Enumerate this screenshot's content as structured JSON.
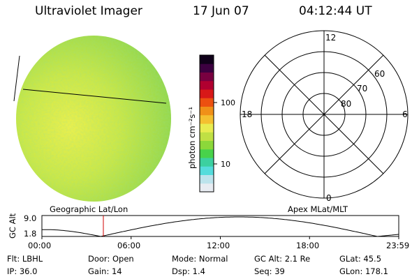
{
  "header": {
    "instrument": "Ultraviolet Imager",
    "date": "17 Jun 07",
    "time": "04:12:44 UT"
  },
  "colorbar": {
    "unit_label": "photon cm⁻²s⁻¹",
    "tick_100": "100",
    "tick_10": "10",
    "colors": [
      "#e8ecf2",
      "#bde3ec",
      "#55dcdc",
      "#3cd0a0",
      "#48d24a",
      "#8cd83a",
      "#c0e044",
      "#e8ec50",
      "#f4c030",
      "#f09018",
      "#ec5010",
      "#d81818",
      "#b00030",
      "#780040",
      "#3c0040",
      "#10001a"
    ]
  },
  "polar_plot": {
    "mlt_12": "12",
    "mlt_18": "18",
    "mlt_6": "6",
    "mlt_0": "0",
    "lat_60": "60",
    "lat_70": "70",
    "lat_80": "80"
  },
  "section_labels": {
    "geo": "Geographic Lat/Lon",
    "apex": "Apex MLat/MLT"
  },
  "altitude_plot": {
    "ylabel": "GC Alt",
    "ytick_top": "9.0",
    "ytick_bottom": "1.8",
    "xticks": [
      "00:00",
      "06:00",
      "12:00",
      "18:00",
      "23:59"
    ]
  },
  "info": {
    "flt": "Flt: LBHL",
    "ip": "IP: 36.0",
    "door": "Door: Open",
    "gain": "Gain: 14",
    "mode": "Mode: Normal",
    "dsp": "Dsp:    1.4",
    "gcalt": "GC Alt: 2.1 Re",
    "seq": "Seq: 39",
    "glat": "GLat:   45.5",
    "glon": "GLon: 178.1"
  }
}
